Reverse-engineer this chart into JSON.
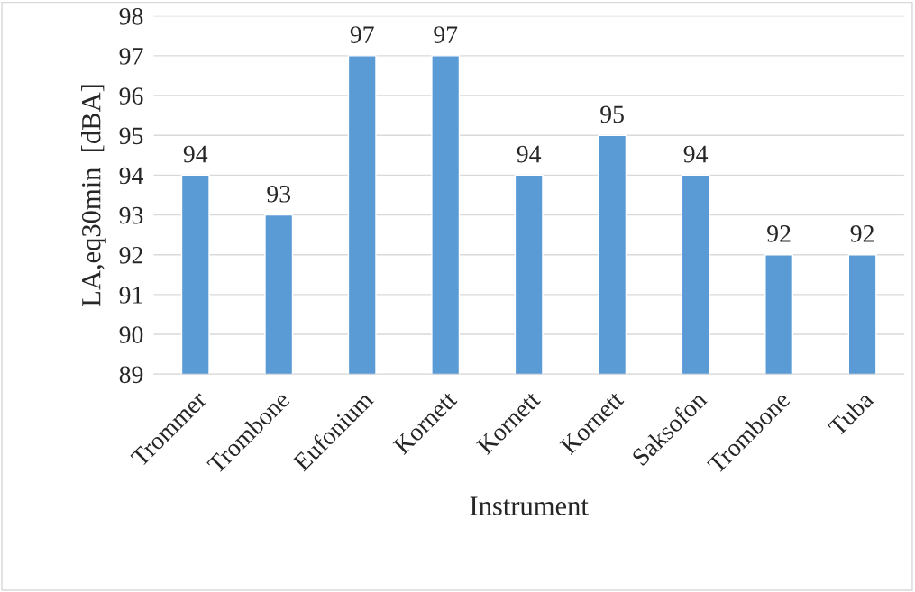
{
  "chart_data": {
    "type": "bar",
    "xlabel": "Instrument",
    "ylabel": "LA,eq30min  [dBA]",
    "categories": [
      "Trommer",
      "Trombone",
      "Eufonium",
      "Kornett",
      "Kornett",
      "Kornett",
      "Saksofon",
      "Trombone",
      "Tuba"
    ],
    "values": [
      94,
      93,
      97,
      97,
      94,
      95,
      94,
      92,
      92
    ],
    "color": "#5b9bd5",
    "ylim": [
      89,
      98
    ],
    "yticks": [
      89,
      90,
      91,
      92,
      93,
      94,
      95,
      96,
      97,
      98
    ],
    "grid": "y",
    "data_labels": true
  }
}
